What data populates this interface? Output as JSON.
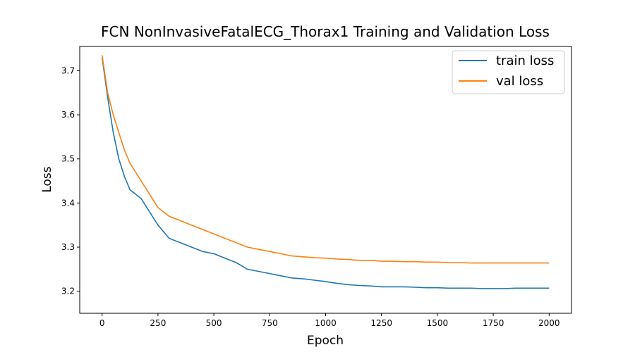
{
  "chart_data": {
    "type": "line",
    "title": "FCN NonInvasiveFatalECG_Thorax1 Training and Validation Loss",
    "xlabel": "Epoch",
    "ylabel": "Loss",
    "xlim": [
      -100,
      2100
    ],
    "ylim": [
      3.15,
      3.755
    ],
    "xticks": [
      0,
      250,
      500,
      750,
      1000,
      1250,
      1500,
      1750,
      2000
    ],
    "yticks": [
      3.2,
      3.3,
      3.4,
      3.5,
      3.6,
      3.7
    ],
    "ytick_labels": [
      "3.2",
      "3.3",
      "3.4",
      "3.5",
      "3.6",
      "3.7"
    ],
    "grid": false,
    "legend_position": "top-right",
    "series": [
      {
        "name": "train loss",
        "color": "#1f77b4",
        "x": [
          0,
          25,
          50,
          75,
          100,
          125,
          150,
          175,
          200,
          250,
          300,
          350,
          400,
          450,
          500,
          550,
          600,
          650,
          700,
          750,
          800,
          850,
          900,
          950,
          1000,
          1050,
          1100,
          1150,
          1200,
          1250,
          1300,
          1350,
          1400,
          1450,
          1500,
          1550,
          1600,
          1650,
          1700,
          1750,
          1800,
          1850,
          1900,
          1950,
          2000
        ],
        "y": [
          3.73,
          3.64,
          3.56,
          3.5,
          3.46,
          3.43,
          3.42,
          3.41,
          3.39,
          3.35,
          3.32,
          3.31,
          3.3,
          3.29,
          3.285,
          3.275,
          3.265,
          3.25,
          3.245,
          3.24,
          3.235,
          3.23,
          3.228,
          3.225,
          3.222,
          3.218,
          3.215,
          3.213,
          3.212,
          3.21,
          3.21,
          3.21,
          3.209,
          3.208,
          3.208,
          3.207,
          3.207,
          3.207,
          3.206,
          3.206,
          3.206,
          3.207,
          3.207,
          3.207,
          3.207
        ]
      },
      {
        "name": "val loss",
        "color": "#ff7f0e",
        "x": [
          0,
          25,
          50,
          75,
          100,
          125,
          150,
          175,
          200,
          250,
          300,
          350,
          400,
          450,
          500,
          550,
          600,
          650,
          700,
          750,
          800,
          850,
          900,
          950,
          1000,
          1050,
          1100,
          1150,
          1200,
          1250,
          1300,
          1350,
          1400,
          1450,
          1500,
          1550,
          1600,
          1650,
          1700,
          1750,
          1800,
          1850,
          1900,
          1950,
          2000
        ],
        "y": [
          3.735,
          3.65,
          3.6,
          3.56,
          3.52,
          3.49,
          3.47,
          3.45,
          3.43,
          3.39,
          3.37,
          3.36,
          3.35,
          3.34,
          3.33,
          3.32,
          3.31,
          3.3,
          3.295,
          3.29,
          3.285,
          3.28,
          3.278,
          3.276,
          3.275,
          3.273,
          3.272,
          3.27,
          3.27,
          3.268,
          3.268,
          3.267,
          3.267,
          3.266,
          3.266,
          3.265,
          3.265,
          3.264,
          3.264,
          3.264,
          3.264,
          3.264,
          3.264,
          3.264,
          3.264
        ]
      }
    ]
  }
}
